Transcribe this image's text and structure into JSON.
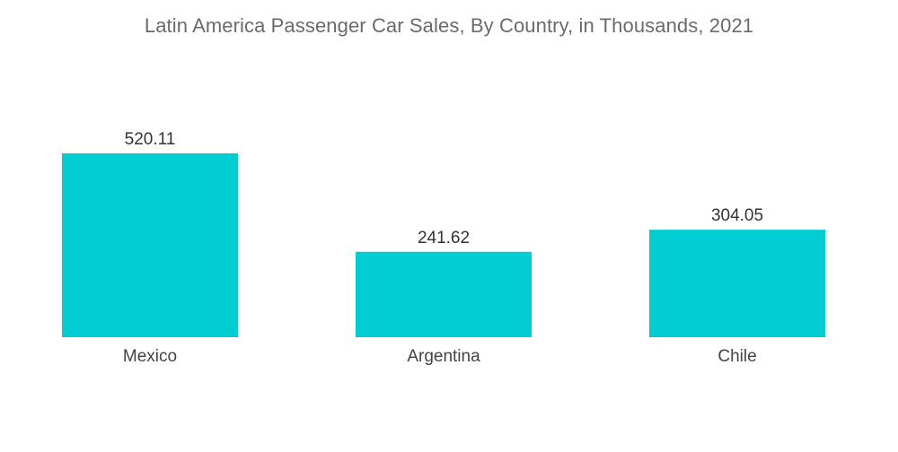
{
  "chart_data": {
    "type": "bar",
    "title": "Latin America Passenger Car Sales, By Country, in Thousands, 2021",
    "categories": [
      "Mexico",
      "Argentina",
      "Chile"
    ],
    "values": [
      520.11,
      241.62,
      304.05
    ],
    "value_labels": [
      "520.11",
      "241.62",
      "304.05"
    ],
    "xlabel": "",
    "ylabel": "",
    "ylim": [
      0,
      520.11
    ],
    "grid": false,
    "legend": "none",
    "bar_color": "#00CDD2"
  }
}
